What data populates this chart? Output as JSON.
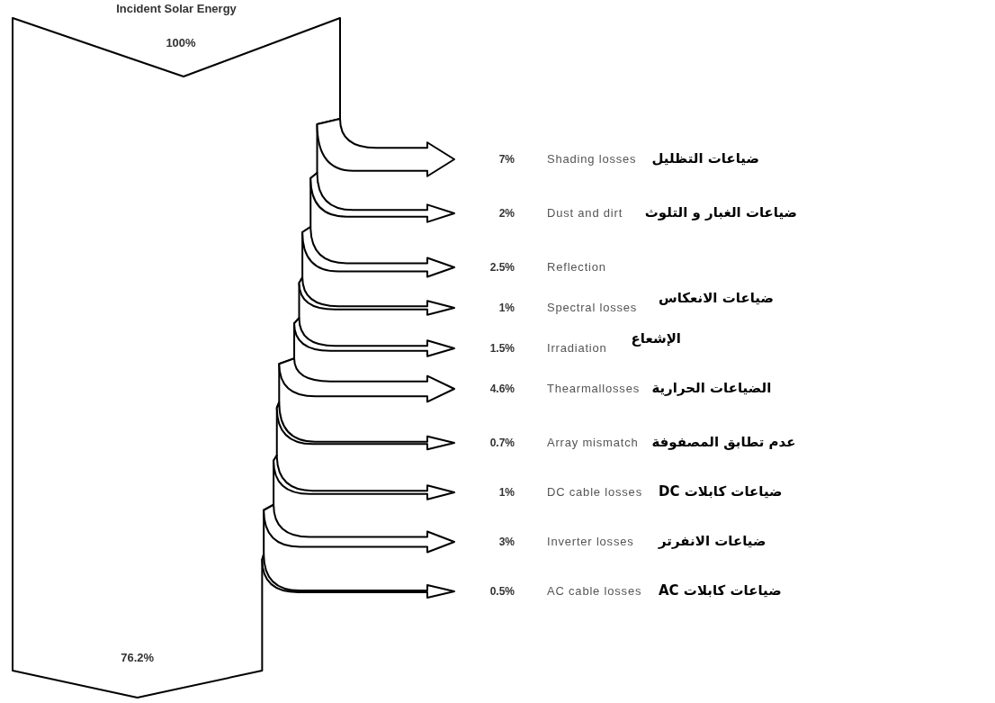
{
  "chart_data": {
    "type": "other",
    "title": "Incident Solar Energy",
    "categories": [
      "Shading losses",
      "Dust and dirt",
      "Reflection",
      "Spectral losses",
      "Irradiation",
      "Thearmallosses",
      "Array mismatch",
      "DC cable losses",
      "Inverter losses",
      "AC cable losses"
    ],
    "values": [
      7,
      2,
      2.5,
      1,
      1.5,
      4.6,
      0.7,
      1,
      3,
      0.5
    ],
    "value_labels": [
      "7%",
      "2%",
      "2.5%",
      "1%",
      "1.5%",
      "4.6%",
      "0.7%",
      "1%",
      "3%",
      "0.5%"
    ],
    "y2_categories": [
      "ضياعات التظليل",
      "ضياعات الغبار و التلوث",
      null,
      "ضياعات الانعكاس",
      "الإشعاع",
      "الضياعات الحرارية",
      "عدم تطابق المصفوفة",
      "ضياعات كابلات DC",
      "ضياعات الانفرتر",
      "ضياعات كابلات AC"
    ],
    "annotations": [
      "100%",
      "76.2%"
    ]
  }
}
